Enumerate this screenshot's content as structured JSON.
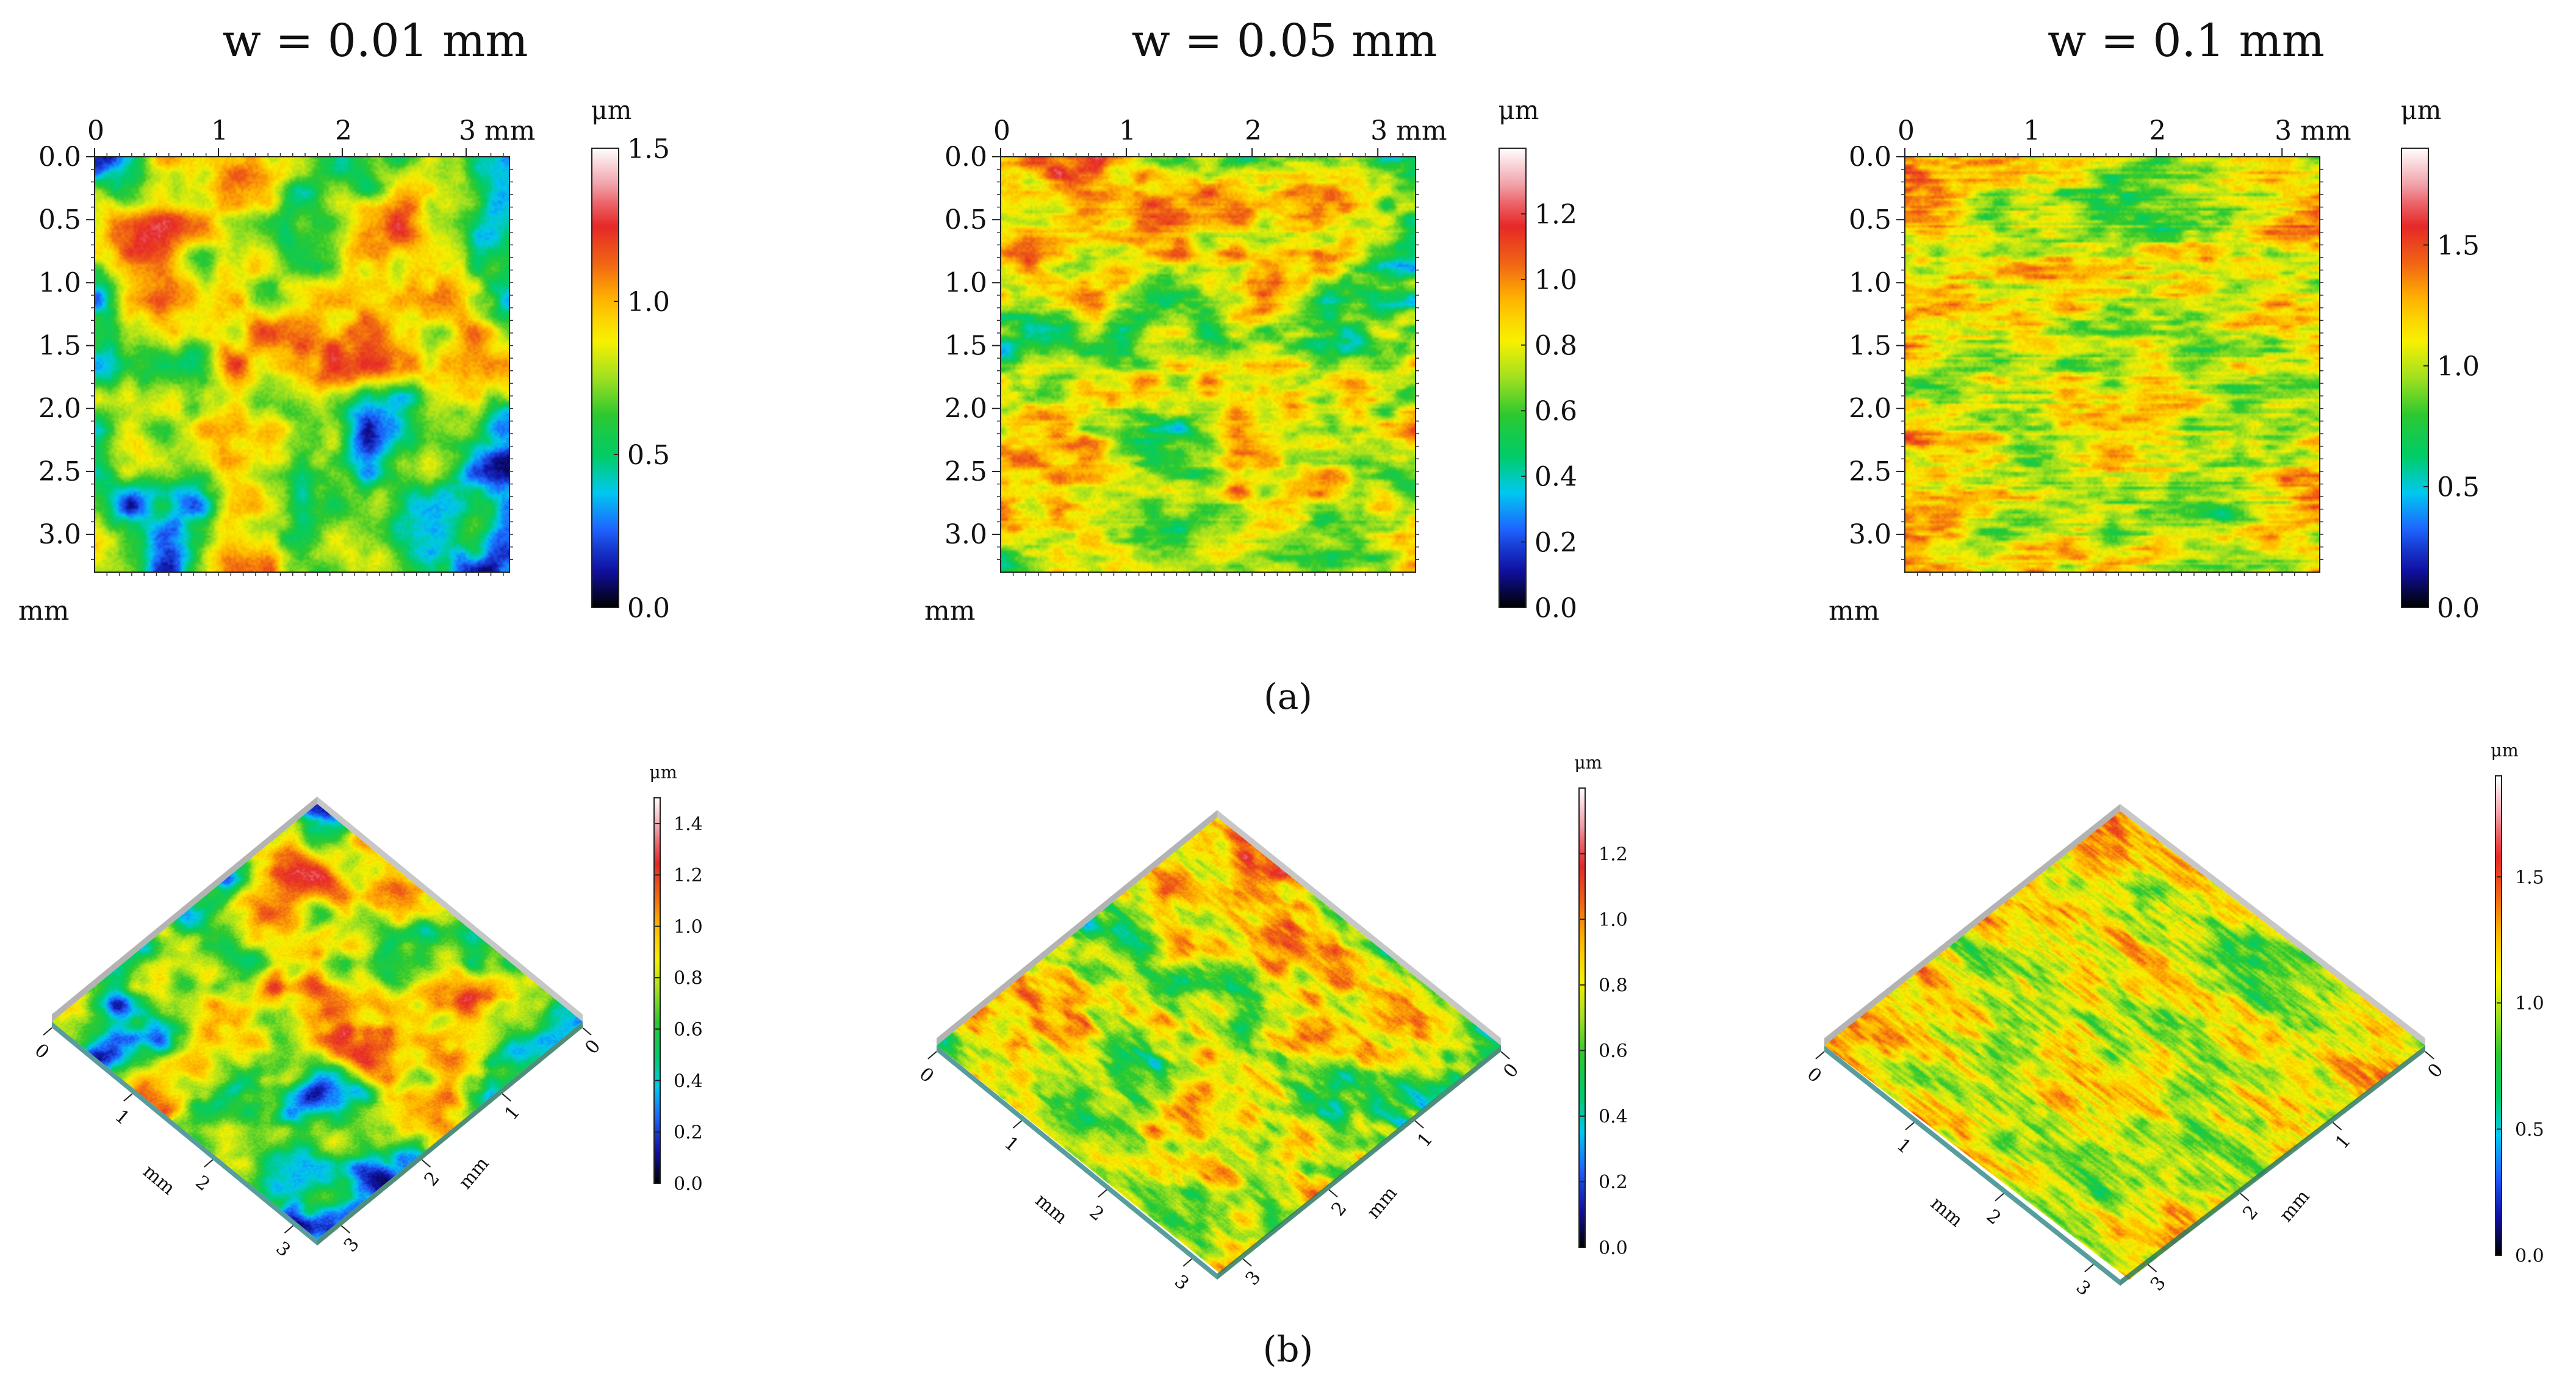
{
  "caption_a": "(a)",
  "caption_b": "(b)",
  "colormap": [
    "#000000",
    "#1010a0",
    "#1e64ff",
    "#00c8f0",
    "#00cc66",
    "#2ec82e",
    "#a0e020",
    "#f8f000",
    "#ffb400",
    "#f06414",
    "#e62828",
    "#f0a0a8",
    "#ffffff"
  ],
  "chart_data": [
    {
      "type": "heatmap",
      "title": "w = 0.01 mm",
      "view": "2d",
      "x_unit": "mm",
      "y_unit": "mm",
      "z_unit": "μm",
      "x_ticks": [
        "0",
        "1",
        "2",
        "3 mm"
      ],
      "x_tick_values": [
        0,
        1,
        2,
        3
      ],
      "y_ticks": [
        "0.0",
        "0.5",
        "1.0",
        "1.5",
        "2.0",
        "2.5",
        "3.0"
      ],
      "y_tick_values": [
        0.0,
        0.5,
        1.0,
        1.5,
        2.0,
        2.5,
        3.0
      ],
      "xlim": [
        0,
        3.35
      ],
      "ylim": [
        0,
        3.3
      ],
      "colorbar_ticks": [
        "0.0",
        "0.5",
        "1.0",
        "1.5"
      ],
      "colorbar_tick_values": [
        0.0,
        0.5,
        1.0,
        1.5
      ],
      "zlim": [
        0,
        1.5
      ],
      "seed": 11,
      "grain": "blob",
      "mean_fraction": 0.5,
      "contrast": 0.9
    },
    {
      "type": "heatmap",
      "title": "w = 0.05 mm",
      "view": "2d",
      "x_unit": "mm",
      "y_unit": "mm",
      "z_unit": "μm",
      "x_ticks": [
        "0",
        "1",
        "2",
        "3 mm"
      ],
      "x_tick_values": [
        0,
        1,
        2,
        3
      ],
      "y_ticks": [
        "0.0",
        "0.5",
        "1.0",
        "1.5",
        "2.0",
        "2.5",
        "3.0"
      ],
      "y_tick_values": [
        0.0,
        0.5,
        1.0,
        1.5,
        2.0,
        2.5,
        3.0
      ],
      "xlim": [
        0,
        3.3
      ],
      "ylim": [
        0,
        3.3
      ],
      "colorbar_ticks": [
        "0.0",
        "0.2",
        "0.4",
        "0.6",
        "0.8",
        "1.0",
        "1.2"
      ],
      "colorbar_tick_values": [
        0.0,
        0.2,
        0.4,
        0.6,
        0.8,
        1.0,
        1.2
      ],
      "zlim": [
        0,
        1.4
      ],
      "seed": 23,
      "grain": "streak",
      "mean_fraction": 0.55,
      "contrast": 0.7
    },
    {
      "type": "heatmap",
      "title": "w = 0.1 mm",
      "view": "2d",
      "x_unit": "mm",
      "y_unit": "mm",
      "z_unit": "μm",
      "x_ticks": [
        "0",
        "1",
        "2",
        "3 mm"
      ],
      "x_tick_values": [
        0,
        1,
        2,
        3
      ],
      "y_ticks": [
        "0.0",
        "0.5",
        "1.0",
        "1.5",
        "2.0",
        "2.5",
        "3.0"
      ],
      "y_tick_values": [
        0.0,
        0.5,
        1.0,
        1.5,
        2.0,
        2.5,
        3.0
      ],
      "xlim": [
        0,
        3.3
      ],
      "ylim": [
        0,
        3.3
      ],
      "colorbar_ticks": [
        "0.0",
        "0.5",
        "1.0",
        "1.5"
      ],
      "colorbar_tick_values": [
        0.0,
        0.5,
        1.0,
        1.5
      ],
      "zlim": [
        0,
        1.9
      ],
      "seed": 37,
      "grain": "fine",
      "mean_fraction": 0.56,
      "contrast": 0.55
    },
    {
      "type": "heatmap",
      "view": "3d",
      "axis_unit": "mm",
      "z_unit": "μm",
      "axis_ticks": [
        "0",
        "1",
        "2",
        "3"
      ],
      "colorbar_ticks": [
        "0.0",
        "0.2",
        "0.4",
        "0.6",
        "0.8",
        "1.0",
        "1.2",
        "1.4"
      ],
      "colorbar_tick_values": [
        0.0,
        0.2,
        0.4,
        0.6,
        0.8,
        1.0,
        1.2,
        1.4
      ],
      "zlim": [
        0,
        1.5
      ],
      "seed": 11,
      "grain": "blob",
      "mean_fraction": 0.5,
      "contrast": 0.9
    },
    {
      "type": "heatmap",
      "view": "3d",
      "axis_unit": "mm",
      "z_unit": "μm",
      "axis_ticks": [
        "0",
        "1",
        "2",
        "3"
      ],
      "colorbar_ticks": [
        "0.0",
        "0.2",
        "0.4",
        "0.6",
        "0.8",
        "1.0",
        "1.2"
      ],
      "colorbar_tick_values": [
        0.0,
        0.2,
        0.4,
        0.6,
        0.8,
        1.0,
        1.2
      ],
      "zlim": [
        0,
        1.4
      ],
      "seed": 23,
      "grain": "streak",
      "mean_fraction": 0.55,
      "contrast": 0.7
    },
    {
      "type": "heatmap",
      "view": "3d",
      "axis_unit": "mm",
      "z_unit": "μm",
      "axis_ticks": [
        "0",
        "1",
        "2",
        "3"
      ],
      "colorbar_ticks": [
        "0.0",
        "0.5",
        "1.0",
        "1.5"
      ],
      "colorbar_tick_values": [
        0.0,
        0.5,
        1.0,
        1.5
      ],
      "zlim": [
        0,
        1.9
      ],
      "seed": 37,
      "grain": "fine",
      "mean_fraction": 0.56,
      "contrast": 0.55
    }
  ]
}
